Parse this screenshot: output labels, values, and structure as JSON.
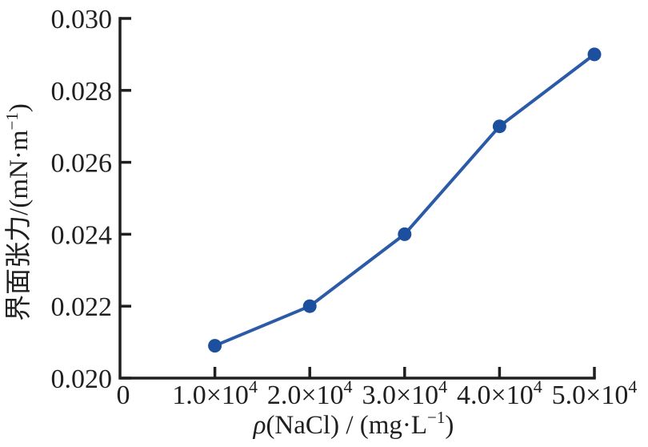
{
  "figure": {
    "background": "#ffffff"
  },
  "chart_data": {
    "type": "line",
    "title": "",
    "xlabel": "ρ(NaCl) / (mg·L⁻¹)",
    "ylabel": "界面张力/(mN·m⁻¹)",
    "xlabel_parts": {
      "italic": "ρ",
      "mid": "(NaCl) / (mg·L",
      "sup": "−1",
      "post": ")"
    },
    "ylabel_parts": {
      "pre": "界面张力/(mN·m",
      "sup": "−1",
      "post": ")"
    },
    "x": [
      10000,
      20000,
      30000,
      40000,
      50000
    ],
    "y": [
      0.0209,
      0.022,
      0.024,
      0.027,
      0.029
    ],
    "xlim": [
      0,
      50000
    ],
    "ylim": [
      0.02,
      0.03
    ],
    "x_ticks": [
      {
        "value": 0,
        "base": "0",
        "exp": ""
      },
      {
        "value": 10000,
        "base": "1.0×10",
        "exp": "4"
      },
      {
        "value": 20000,
        "base": "2.0×10",
        "exp": "4"
      },
      {
        "value": 30000,
        "base": "3.0×10",
        "exp": "4"
      },
      {
        "value": 40000,
        "base": "4.0×10",
        "exp": "4"
      },
      {
        "value": 50000,
        "base": "5.0×10",
        "exp": "4"
      }
    ],
    "y_ticks": [
      {
        "value": 0.02,
        "label": "0.020"
      },
      {
        "value": 0.022,
        "label": "0.022"
      },
      {
        "value": 0.024,
        "label": "0.024"
      },
      {
        "value": 0.026,
        "label": "0.026"
      },
      {
        "value": 0.028,
        "label": "0.028"
      },
      {
        "value": 0.03,
        "label": "0.030"
      }
    ],
    "grid": false,
    "legend": "none",
    "line_color": "#2a5aa8",
    "marker_color": "#1c4f9e",
    "axis_color": "#1f1f1f",
    "text_color": "#1f1f1f"
  }
}
